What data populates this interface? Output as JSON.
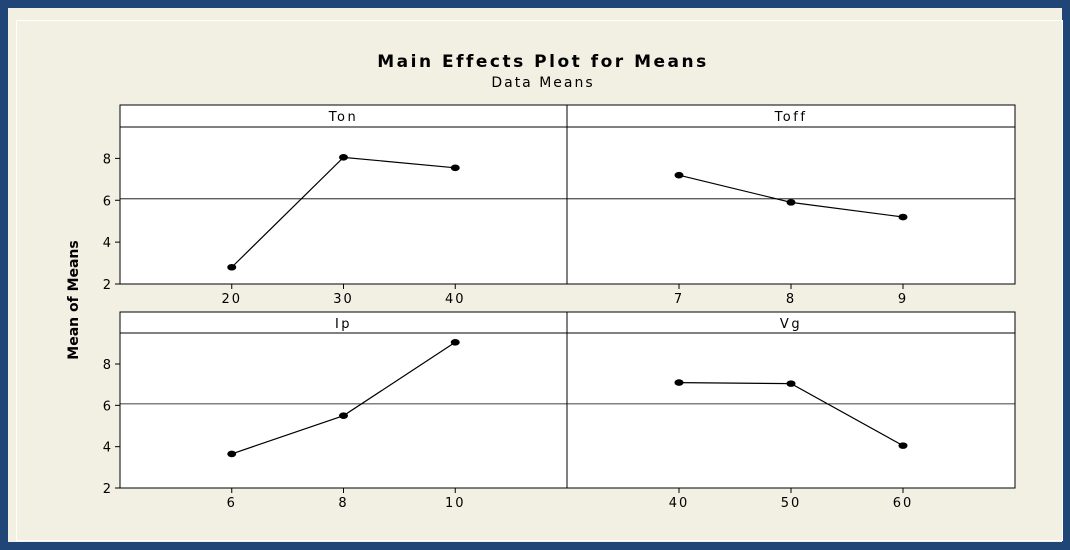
{
  "chart_data": {
    "type": "line",
    "title": "Main Effects Plot for Means",
    "subtitle": "Data Means",
    "ylabel": "Mean of Means",
    "ylim": [
      2,
      9.5
    ],
    "yticks": [
      2,
      4,
      6,
      8
    ],
    "reference_line": 6.07,
    "grid": false,
    "panels": [
      {
        "name": "Ton",
        "categories": [
          "20",
          "30",
          "40"
        ],
        "values": [
          2.8,
          8.05,
          7.55
        ]
      },
      {
        "name": "Toff",
        "categories": [
          "7",
          "8",
          "9"
        ],
        "values": [
          7.2,
          5.9,
          5.2
        ]
      },
      {
        "name": "Ip",
        "categories": [
          "6",
          "8",
          "10"
        ],
        "values": [
          3.65,
          5.5,
          9.05
        ]
      },
      {
        "name": "Vg",
        "categories": [
          "40",
          "50",
          "60"
        ],
        "values": [
          7.1,
          7.05,
          4.05
        ]
      }
    ]
  },
  "colors": {
    "frame": "#1f4677",
    "background": "#f2efe3",
    "plot": "#ffffff",
    "ink": "#000000"
  }
}
